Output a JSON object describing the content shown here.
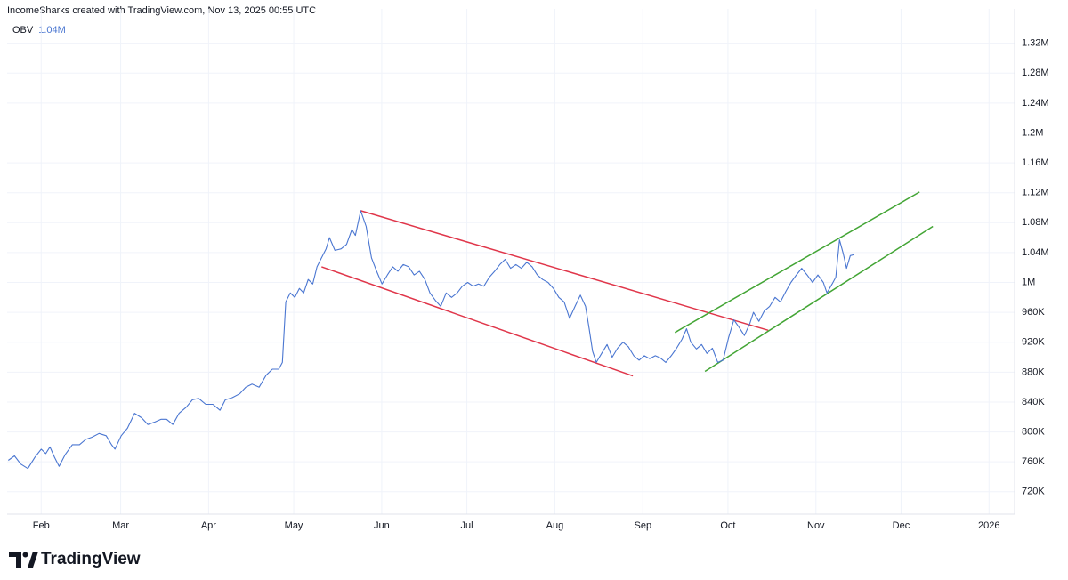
{
  "header": "IncomeSharks created with TradingView.com, Nov 13, 2025 00:55 UTC",
  "logo": "TradingView",
  "chart_data": {
    "type": "line",
    "indicator": "OBV",
    "indicator_value": "1.04M",
    "xlim": [
      19,
      374
    ],
    "xticks": [
      {
        "value": 31,
        "label": "Feb"
      },
      {
        "value": 59,
        "label": "Mar"
      },
      {
        "value": 90,
        "label": "Apr"
      },
      {
        "value": 120,
        "label": "May"
      },
      {
        "value": 151,
        "label": "Jun"
      },
      {
        "value": 181,
        "label": "Jul"
      },
      {
        "value": 212,
        "label": "Aug"
      },
      {
        "value": 243,
        "label": "Sep"
      },
      {
        "value": 273,
        "label": "Oct"
      },
      {
        "value": 304,
        "label": "Nov"
      },
      {
        "value": 334,
        "label": "Dec"
      },
      {
        "value": 365,
        "label": "2026"
      }
    ],
    "ylim": [
      690000,
      1366000
    ],
    "yticks": [
      {
        "value": 720000,
        "label": "720K"
      },
      {
        "value": 760000,
        "label": "760K"
      },
      {
        "value": 800000,
        "label": "800K"
      },
      {
        "value": 840000,
        "label": "840K"
      },
      {
        "value": 880000,
        "label": "880K"
      },
      {
        "value": 920000,
        "label": "920K"
      },
      {
        "value": 960000,
        "label": "960K"
      },
      {
        "value": 1000000,
        "label": "1M"
      },
      {
        "value": 1040000,
        "label": "1.04M"
      },
      {
        "value": 1080000,
        "label": "1.08M"
      },
      {
        "value": 1120000,
        "label": "1.12M"
      },
      {
        "value": 1160000,
        "label": "1.16M"
      },
      {
        "value": 1200000,
        "label": "1.2M"
      },
      {
        "value": 1240000,
        "label": "1.24M"
      },
      {
        "value": 1280000,
        "label": "1.28M"
      },
      {
        "value": 1320000,
        "label": "1.32M"
      }
    ],
    "grid": true,
    "x": [
      19.4,
      21.6,
      23.8,
      26.3,
      28.8,
      31,
      32.6,
      34.1,
      35.7,
      37.3,
      39.5,
      42,
      44.5,
      46.7,
      48.9,
      51.4,
      53.9,
      55.8,
      57,
      59.2,
      61.4,
      63.9,
      66.4,
      68.6,
      70.8,
      73.3,
      75.2,
      77.4,
      79.6,
      82.1,
      84.3,
      86.5,
      89,
      91.5,
      94,
      95.9,
      98.4,
      100.9,
      103.1,
      105.3,
      107.8,
      110.3,
      112.5,
      114.7,
      116,
      117.2,
      118.8,
      120.4,
      122,
      123.5,
      125.1,
      126.7,
      128.2,
      129.8,
      131.4,
      132.6,
      134.5,
      136.7,
      138.6,
      140.5,
      141.7,
      143.6,
      145.5,
      147.4,
      149.2,
      151.1,
      153,
      154.9,
      156.7,
      158.6,
      160.5,
      162.4,
      164.3,
      166.2,
      168,
      169.9,
      171.8,
      173.7,
      175.6,
      177.6,
      179.4,
      181.3,
      183.2,
      185.1,
      187,
      188.9,
      190.8,
      192.6,
      194.5,
      196.4,
      198.3,
      200.2,
      202.1,
      204,
      205.8,
      207.7,
      209.6,
      211.5,
      213.4,
      215.3,
      217.2,
      219.1,
      221,
      222.8,
      224.1,
      225.3,
      226.6,
      228.5,
      230.4,
      232.2,
      234.1,
      236,
      237.9,
      239.8,
      241.7,
      243.5,
      245.4,
      247.4,
      249.2,
      251.1,
      253,
      254.9,
      256.8,
      258.4,
      259.9,
      261.9,
      263.7,
      265.6,
      267.5,
      269.4,
      271.3,
      273.2,
      275.1,
      276.9,
      278.8,
      280.7,
      282,
      283.9,
      285.8,
      287.7,
      289.6,
      291.5,
      293.4,
      295.2,
      297.1,
      299,
      300.9,
      302.8,
      304.7,
      306.6,
      307.9,
      309.7,
      311,
      312.3,
      313.6,
      314.8,
      316.1,
      317.3
    ],
    "series": [
      {
        "name": "OBV",
        "color": "#4a76d1",
        "values": [
          762000,
          768000,
          757000,
          751000,
          766000,
          777000,
          771000,
          780000,
          766000,
          754000,
          770000,
          783000,
          783000,
          790000,
          793000,
          798000,
          795000,
          783000,
          777000,
          795000,
          805000,
          825000,
          819000,
          810000,
          813000,
          817000,
          817000,
          810000,
          825000,
          833000,
          843000,
          845000,
          837000,
          837000,
          829000,
          843000,
          846000,
          851000,
          860000,
          864000,
          860000,
          876000,
          884000,
          884000,
          893000,
          974000,
          986000,
          980000,
          992000,
          986000,
          1004000,
          998000,
          1021000,
          1033000,
          1045000,
          1060000,
          1043000,
          1045000,
          1051000,
          1071000,
          1063000,
          1096000,
          1075000,
          1033000,
          1015000,
          998000,
          1010000,
          1021000,
          1015000,
          1024000,
          1021000,
          1010000,
          1015000,
          1004000,
          986000,
          976000,
          968000,
          986000,
          980000,
          986000,
          995000,
          1000000,
          995000,
          998000,
          995000,
          1007000,
          1015000,
          1024000,
          1031000,
          1019000,
          1024000,
          1019000,
          1027000,
          1021000,
          1010000,
          1004000,
          1000000,
          992000,
          980000,
          974000,
          952000,
          968000,
          983000,
          968000,
          938000,
          908000,
          893000,
          905000,
          917000,
          900000,
          912000,
          920000,
          914000,
          902000,
          896000,
          902000,
          898000,
          902000,
          899000,
          893000,
          902000,
          912000,
          924000,
          938000,
          920000,
          911000,
          917000,
          905000,
          912000,
          893000,
          896000,
          926000,
          950000,
          940000,
          929000,
          945000,
          960000,
          948000,
          962000,
          968000,
          980000,
          974000,
          988000,
          1000000,
          1010000,
          1019000,
          1010000,
          1000000,
          1010000,
          1000000,
          986000,
          998000,
          1007000,
          1057000,
          1039000,
          1019000,
          1036000,
          1037000
        ]
      }
    ],
    "trendlines": [
      {
        "color": "#e0364a",
        "x": [
          143.6,
          287.2
        ],
        "y": [
          1096000,
          936000
        ]
      },
      {
        "color": "#e0364a",
        "x": [
          129.8,
          239.5
        ],
        "y": [
          1021000,
          875000
        ]
      },
      {
        "color": "#43a535",
        "x": [
          254.3,
          340.5
        ],
        "y": [
          933000,
          1121000
        ]
      },
      {
        "color": "#43a535",
        "x": [
          264.9,
          345.2
        ],
        "y": [
          881000,
          1075000
        ]
      }
    ]
  }
}
